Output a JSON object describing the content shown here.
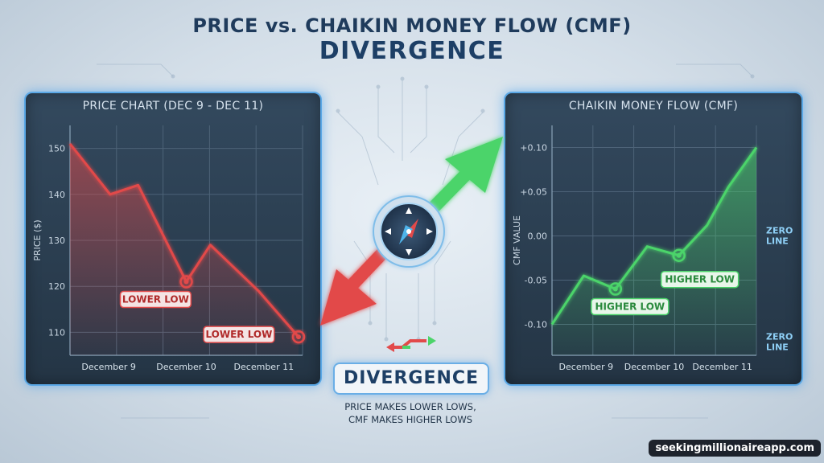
{
  "title": "PRICE vs. CHAIKIN MONEY FLOW (CMF)",
  "subtitle_title": "DIVERGENCE",
  "center_label": "DIVERGENCE",
  "center_text_1": "PRICE MAKES LOWER LOWS,",
  "center_text_2": "CMF MAKES HIGHER LOWS",
  "watermark": "seekingmillionaireapp.com",
  "colors": {
    "price": "#e24a4a",
    "cmf": "#4cd46a",
    "zero_line": "#7cc4f2",
    "accent": "#1f3b5c"
  },
  "chart_data": [
    {
      "type": "area",
      "title": "PRICE CHART (DEC 9 - DEC 11)",
      "ylabel": "PRICE ($)",
      "categories": [
        "December 9",
        "December 10",
        "December 11"
      ],
      "y_ticks": [
        "150",
        "140",
        "130",
        "120",
        "110"
      ],
      "x": [
        0,
        0.5,
        0.85,
        1.45,
        1.75,
        2.35,
        2.85
      ],
      "values": [
        151,
        140,
        142,
        121,
        129,
        119,
        109
      ],
      "ylim": [
        105,
        155
      ],
      "xlim": [
        0,
        2.9
      ],
      "annotations": [
        {
          "label": "LOWER LOW",
          "point_index": 3
        },
        {
          "label": "LOWER LOW",
          "point_index": 6
        }
      ]
    },
    {
      "type": "area",
      "title": "CHAIKIN MONEY FLOW (CMF)",
      "ylabel": "CMF VALUE",
      "categories": [
        "December 9",
        "December 10",
        "December 11"
      ],
      "y_ticks": [
        "+0.10",
        "+0.05",
        "0.00",
        "-0.05",
        "-0.10"
      ],
      "x": [
        0,
        0.45,
        0.9,
        1.35,
        1.8,
        2.2,
        2.5,
        2.9
      ],
      "values": [
        -0.1,
        -0.045,
        -0.06,
        -0.012,
        -0.022,
        0.012,
        0.055,
        0.1
      ],
      "ylim": [
        -0.135,
        0.125
      ],
      "xlim": [
        0,
        2.9
      ],
      "annotations": [
        {
          "label": "HIGHER LOW",
          "point_index": 2
        },
        {
          "label": "HIGHER LOW",
          "point_index": 4
        }
      ],
      "reference_lines": [
        {
          "label": "ZERO",
          "label_2": "LINE",
          "value": 0.0
        },
        {
          "label": "ZERO",
          "label_2": "LINE",
          "value": -0.12
        }
      ]
    }
  ]
}
